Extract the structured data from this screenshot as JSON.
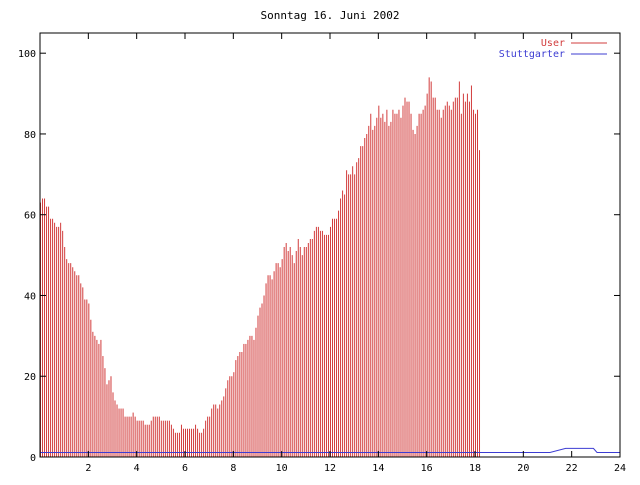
{
  "chart_data": {
    "type": "bar",
    "title": "Sonntag 16. Juni 2002",
    "xlabel": "",
    "ylabel": "",
    "xlim": [
      0,
      24
    ],
    "ylim": [
      0,
      105
    ],
    "x_ticks": [
      2,
      4,
      6,
      8,
      10,
      12,
      14,
      16,
      18,
      20,
      22,
      24
    ],
    "x_tick_labels": [
      "2",
      "4",
      "6",
      "8",
      "10",
      "12",
      "14",
      "16",
      "18",
      "20",
      "22",
      "24"
    ],
    "y_ticks": [
      0,
      20,
      40,
      60,
      80,
      100
    ],
    "y_tick_labels": [
      "0",
      "20",
      "40",
      "60",
      "80",
      "100"
    ],
    "grid": false,
    "legend_position": "top-right",
    "series": [
      {
        "name": "User",
        "style": "impulses",
        "color": "#d23c3c",
        "x_start": 0,
        "x_step": 0.08333,
        "values": [
          63,
          64,
          64,
          62,
          62,
          59,
          59,
          58,
          57,
          57,
          58,
          56,
          52,
          49,
          48,
          48,
          47,
          46,
          45,
          45,
          43,
          42,
          39,
          39,
          38,
          34,
          31,
          30,
          29,
          28,
          29,
          25,
          22,
          18,
          19,
          20,
          16,
          14,
          13,
          12,
          12,
          12,
          10,
          10,
          10,
          10,
          11,
          10,
          9,
          9,
          9,
          9,
          8,
          8,
          8,
          9,
          10,
          10,
          10,
          10,
          9,
          9,
          9,
          9,
          9,
          8,
          7,
          6,
          6,
          6,
          8,
          7,
          7,
          7,
          7,
          7,
          7,
          8,
          7,
          6,
          6,
          7,
          9,
          10,
          10,
          12,
          13,
          13,
          12,
          13,
          14,
          15,
          17,
          19,
          20,
          20,
          21,
          24,
          25,
          26,
          26,
          28,
          28,
          29,
          30,
          30,
          29,
          32,
          35,
          37,
          38,
          40,
          43,
          45,
          45,
          44,
          46,
          48,
          48,
          47,
          49,
          52,
          53,
          51,
          52,
          50,
          48,
          51,
          54,
          52,
          50,
          52,
          52,
          53,
          54,
          54,
          56,
          57,
          57,
          56,
          56,
          55,
          55,
          55,
          57,
          59,
          59,
          59,
          61,
          64,
          66,
          65,
          71,
          70,
          70,
          72,
          70,
          73,
          74,
          77,
          77,
          79,
          80,
          82,
          85,
          81,
          82,
          84,
          87,
          84,
          85,
          83,
          86,
          82,
          83,
          86,
          85,
          85,
          86,
          84,
          87,
          89,
          88,
          88,
          85,
          81,
          80,
          82,
          85,
          85,
          86,
          87,
          90,
          94,
          93,
          89,
          89,
          86,
          86,
          84,
          86,
          87,
          88,
          87,
          86,
          88,
          89,
          89,
          93,
          85,
          90,
          88,
          90,
          88,
          92,
          86,
          85,
          86,
          76
        ]
      },
      {
        "name": "Stuttgarter",
        "style": "line",
        "color": "#3c3cd2",
        "x": [
          0,
          21.1,
          21.75,
          22.9,
          23.05,
          24
        ],
        "values": [
          1,
          1,
          2,
          2,
          1,
          1
        ]
      }
    ]
  }
}
